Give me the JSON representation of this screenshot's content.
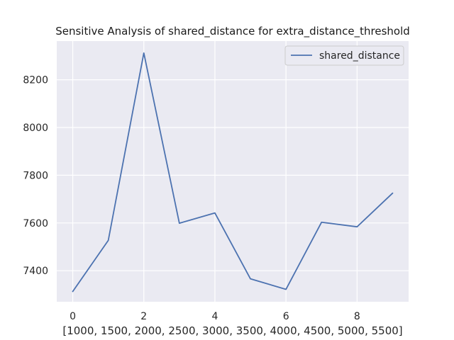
{
  "chart_data": {
    "type": "line",
    "title": "Sensitive Analysis of shared_distance for extra_distance_threshold",
    "xlabel": "[1000, 1500, 2000, 2500, 3000, 3500, 4000, 4500, 5000, 5500]",
    "ylabel": "",
    "x": [
      0,
      1,
      2,
      3,
      4,
      5,
      6,
      7,
      8,
      9
    ],
    "series": [
      {
        "name": "shared_distance",
        "values": [
          7313,
          7527,
          8312,
          7599,
          7642,
          7366,
          7322,
          7603,
          7584,
          7725
        ],
        "color": "#4c72b0"
      }
    ],
    "xlim": [
      -0.45,
      9.45
    ],
    "ylim": [
      7270,
      8362
    ],
    "xticks": [
      0,
      2,
      4,
      6,
      8
    ],
    "yticks": [
      7400,
      7600,
      7800,
      8000,
      8200
    ],
    "grid": true,
    "legend_position": "top-right",
    "background": "#eaeaf2"
  }
}
